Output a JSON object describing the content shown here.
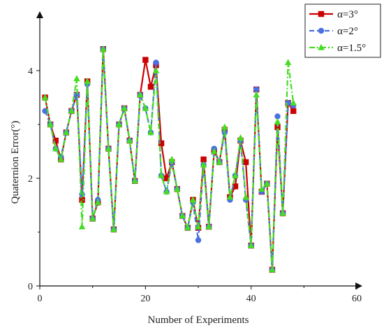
{
  "chart_data": {
    "type": "line",
    "xlabel": "Number of Experiments",
    "ylabel": "Quaternion Error(°)",
    "xlim": [
      0,
      60
    ],
    "ylim": [
      0,
      5
    ],
    "xticks": [
      0,
      20,
      40,
      60
    ],
    "yticks": [
      0,
      2,
      4
    ],
    "grid": false,
    "legend_position": "top-right",
    "x": [
      1,
      2,
      3,
      4,
      5,
      6,
      7,
      8,
      9,
      10,
      11,
      12,
      13,
      14,
      15,
      16,
      17,
      18,
      19,
      20,
      21,
      22,
      23,
      24,
      25,
      26,
      27,
      28,
      29,
      30,
      31,
      32,
      33,
      34,
      35,
      36,
      37,
      38,
      39,
      40,
      41,
      42,
      43,
      44,
      45,
      46,
      47,
      48
    ],
    "series": [
      {
        "name": "α=3°",
        "color": "#cc0000",
        "marker": "square",
        "line_style": "solid",
        "values": [
          3.5,
          3.0,
          2.7,
          2.35,
          2.85,
          3.25,
          3.55,
          1.6,
          3.8,
          1.25,
          1.55,
          4.4,
          2.55,
          1.05,
          3.0,
          3.3,
          2.7,
          1.95,
          3.55,
          4.2,
          3.7,
          4.1,
          2.65,
          2.0,
          2.3,
          1.8,
          1.3,
          1.08,
          1.6,
          1.08,
          2.35,
          1.1,
          2.5,
          2.3,
          2.9,
          1.65,
          1.85,
          2.7,
          2.3,
          0.75,
          3.65,
          1.75,
          1.9,
          0.3,
          2.95,
          1.35,
          3.4,
          3.25
        ]
      },
      {
        "name": "α=2°",
        "color": "#4a6fe0",
        "marker": "circle",
        "line_style": "dashed",
        "values": [
          3.25,
          3.0,
          2.55,
          2.4,
          2.85,
          3.25,
          3.55,
          1.7,
          3.75,
          1.25,
          1.6,
          4.4,
          2.55,
          1.05,
          3.0,
          3.3,
          2.7,
          1.95,
          3.55,
          3.3,
          2.85,
          4.15,
          2.05,
          1.75,
          2.3,
          1.8,
          1.3,
          1.08,
          1.55,
          0.85,
          2.25,
          1.1,
          2.55,
          2.3,
          2.85,
          1.6,
          2.05,
          2.7,
          1.6,
          0.75,
          3.65,
          1.75,
          1.9,
          0.3,
          3.15,
          1.35,
          3.4,
          3.35
        ]
      },
      {
        "name": "α=1.5°",
        "color": "#44dd22",
        "marker": "triangle",
        "line_style": "dashdot",
        "values": [
          3.5,
          3.0,
          2.55,
          2.35,
          2.85,
          3.25,
          3.85,
          1.1,
          3.8,
          1.25,
          1.55,
          4.4,
          2.55,
          1.05,
          3.0,
          3.3,
          2.7,
          1.95,
          3.55,
          3.3,
          2.85,
          4.0,
          2.05,
          1.75,
          2.35,
          1.8,
          1.3,
          1.08,
          1.6,
          1.1,
          2.25,
          1.1,
          2.5,
          2.3,
          2.95,
          1.65,
          2.05,
          2.75,
          1.65,
          0.75,
          3.55,
          1.8,
          1.9,
          0.3,
          3.05,
          1.35,
          4.15,
          3.4
        ]
      }
    ]
  }
}
